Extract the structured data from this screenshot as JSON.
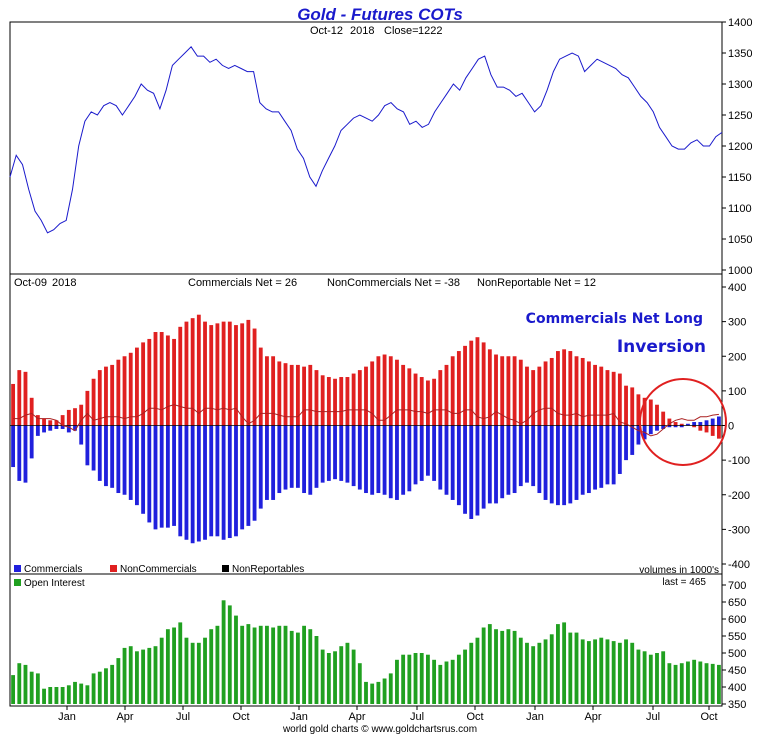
{
  "title": "Gold - Futures COTs",
  "price_panel": {
    "date": "Oct-12",
    "year": "2018",
    "close_label": "Close=",
    "close_value": "1222",
    "ylim": [
      1000,
      1400
    ],
    "yticks": [
      "1000",
      "1050",
      "1100",
      "1150",
      "1200",
      "1250",
      "1300",
      "1350",
      "1400"
    ]
  },
  "cot_panel": {
    "date": "Oct-09",
    "year": "2018",
    "commercials_label": "Commercials Net = 26",
    "noncommercials_label": "NonCommercials Net = -38",
    "nonreportable_label": "NonReportable Net = 12",
    "ylim": [
      -400,
      400
    ],
    "yticks": [
      "-400",
      "-300",
      "-200",
      "-100",
      "0",
      "100",
      "200",
      "300",
      "400"
    ],
    "annotation_line1": "Commercials Net Long",
    "annotation_line2": "Inversion",
    "legend": [
      "Commercials",
      "NonCommercials",
      "NonReportables"
    ],
    "units_note": "volumes in 1000's"
  },
  "oi_panel": {
    "legend": "Open Interest",
    "last_note": "last = 465",
    "ylim": [
      350,
      700
    ],
    "yticks": [
      "350",
      "400",
      "450",
      "500",
      "550",
      "600",
      "650",
      "700"
    ]
  },
  "x_labels": [
    "Jan",
    "Apr",
    "Jul",
    "Oct",
    "Jan",
    "Apr",
    "Jul",
    "Oct",
    "Jan",
    "Apr",
    "Jul",
    "Oct"
  ],
  "footer": "world gold charts © www.goldchartsrus.com",
  "colors": {
    "price_line": "#1a1acc",
    "commercials": "#2020dd",
    "noncommercials": "#e02020",
    "nonreportables": "#000000",
    "open_interest": "#20a020",
    "circle": "#e02020"
  },
  "chart_data": [
    {
      "type": "line",
      "series": [
        {
          "name": "",
          "values": [
            1150,
            1185,
            1170,
            1130,
            1095,
            1080,
            1060,
            1065,
            1075,
            1080,
            1130,
            1200,
            1240,
            1255,
            1250,
            1265,
            1270,
            1265,
            1250,
            1265,
            1280,
            1300,
            1290,
            1285,
            1260,
            1290,
            1330,
            1340,
            1350,
            1360,
            1345,
            1345,
            1335,
            1340,
            1330,
            1325,
            1330,
            1325,
            1320,
            1320,
            1270,
            1260,
            1255,
            1255,
            1240,
            1225,
            1195,
            1180,
            1150,
            1135,
            1160,
            1180,
            1200,
            1225,
            1235,
            1245,
            1250,
            1245,
            1240,
            1250,
            1265,
            1270,
            1260,
            1255,
            1235,
            1240,
            1230,
            1235,
            1255,
            1270,
            1285,
            1300,
            1290,
            1310,
            1325,
            1340,
            1345,
            1315,
            1295,
            1295,
            1290,
            1280,
            1285,
            1270,
            1255,
            1265,
            1290,
            1320,
            1340,
            1345,
            1350,
            1345,
            1320,
            1330,
            1340,
            1335,
            1330,
            1325,
            1315,
            1310,
            1295,
            1280,
            1270,
            1255,
            1230,
            1215,
            1200,
            1195,
            1195,
            1205,
            1210,
            1200,
            1200,
            1215,
            1222
          ]
        }
      ],
      "ylim": [
        1000,
        1400
      ]
    },
    {
      "type": "bar",
      "series": [
        {
          "name": "Commercials",
          "values": [
            -120,
            -160,
            -165,
            -95,
            -30,
            -20,
            -15,
            -10,
            -10,
            -20,
            -15,
            -55,
            -115,
            -130,
            -160,
            -175,
            -180,
            -195,
            -200,
            -215,
            -230,
            -255,
            -280,
            -300,
            -295,
            -295,
            -290,
            -320,
            -330,
            -340,
            -335,
            -330,
            -320,
            -320,
            -330,
            -325,
            -320,
            -300,
            -290,
            -275,
            -240,
            -215,
            -215,
            -195,
            -185,
            -180,
            -180,
            -195,
            -200,
            -180,
            -165,
            -160,
            -155,
            -160,
            -165,
            -175,
            -185,
            -195,
            -200,
            -195,
            -200,
            -210,
            -215,
            -200,
            -190,
            -170,
            -160,
            -145,
            -160,
            -185,
            -200,
            -215,
            -230,
            -255,
            -270,
            -260,
            -240,
            -225,
            -225,
            -210,
            -200,
            -195,
            -175,
            -165,
            -175,
            -195,
            -215,
            -225,
            -230,
            -230,
            -225,
            -215,
            -200,
            -195,
            -185,
            -180,
            -170,
            -170,
            -140,
            -100,
            -85,
            -55,
            -40,
            -25,
            -15,
            -10,
            -5,
            -5,
            -5,
            5,
            10,
            10,
            15,
            20,
            26
          ]
        },
        {
          "name": "NonCommercials",
          "values": [
            120,
            160,
            155,
            80,
            30,
            20,
            15,
            15,
            30,
            45,
            50,
            60,
            100,
            135,
            160,
            170,
            175,
            190,
            200,
            210,
            225,
            240,
            250,
            270,
            270,
            260,
            250,
            285,
            300,
            310,
            320,
            300,
            290,
            295,
            300,
            300,
            290,
            295,
            305,
            280,
            225,
            200,
            200,
            185,
            180,
            175,
            175,
            170,
            175,
            160,
            145,
            140,
            135,
            140,
            140,
            150,
            160,
            170,
            185,
            200,
            205,
            200,
            190,
            175,
            165,
            150,
            140,
            130,
            135,
            160,
            175,
            200,
            215,
            230,
            245,
            255,
            240,
            220,
            205,
            200,
            200,
            200,
            190,
            170,
            160,
            170,
            185,
            195,
            215,
            220,
            215,
            200,
            195,
            185,
            175,
            170,
            160,
            155,
            150,
            115,
            110,
            90,
            80,
            75,
            60,
            40,
            20,
            10,
            5,
            0,
            -5,
            -15,
            -20,
            -30,
            -38
          ]
        }
      ],
      "ylim": [
        -400,
        400
      ]
    },
    {
      "type": "bar",
      "series": [
        {
          "name": "Open Interest",
          "values": [
            435,
            470,
            465,
            445,
            440,
            395,
            400,
            400,
            400,
            405,
            415,
            410,
            405,
            440,
            445,
            455,
            465,
            485,
            515,
            520,
            505,
            510,
            515,
            520,
            545,
            570,
            575,
            590,
            545,
            530,
            530,
            545,
            570,
            580,
            655,
            640,
            610,
            580,
            585,
            575,
            580,
            580,
            575,
            580,
            580,
            565,
            560,
            580,
            570,
            550,
            510,
            500,
            505,
            520,
            530,
            510,
            470,
            415,
            410,
            415,
            425,
            440,
            480,
            495,
            495,
            500,
            500,
            495,
            480,
            465,
            475,
            480,
            495,
            510,
            530,
            545,
            575,
            585,
            570,
            565,
            570,
            565,
            545,
            530,
            520,
            530,
            540,
            555,
            585,
            590,
            560,
            560,
            540,
            535,
            540,
            545,
            540,
            535,
            530,
            540,
            530,
            510,
            505,
            495,
            500,
            505,
            470,
            465,
            470,
            475,
            480,
            475,
            470,
            468,
            465
          ]
        }
      ],
      "ylim": [
        350,
        700
      ]
    }
  ]
}
